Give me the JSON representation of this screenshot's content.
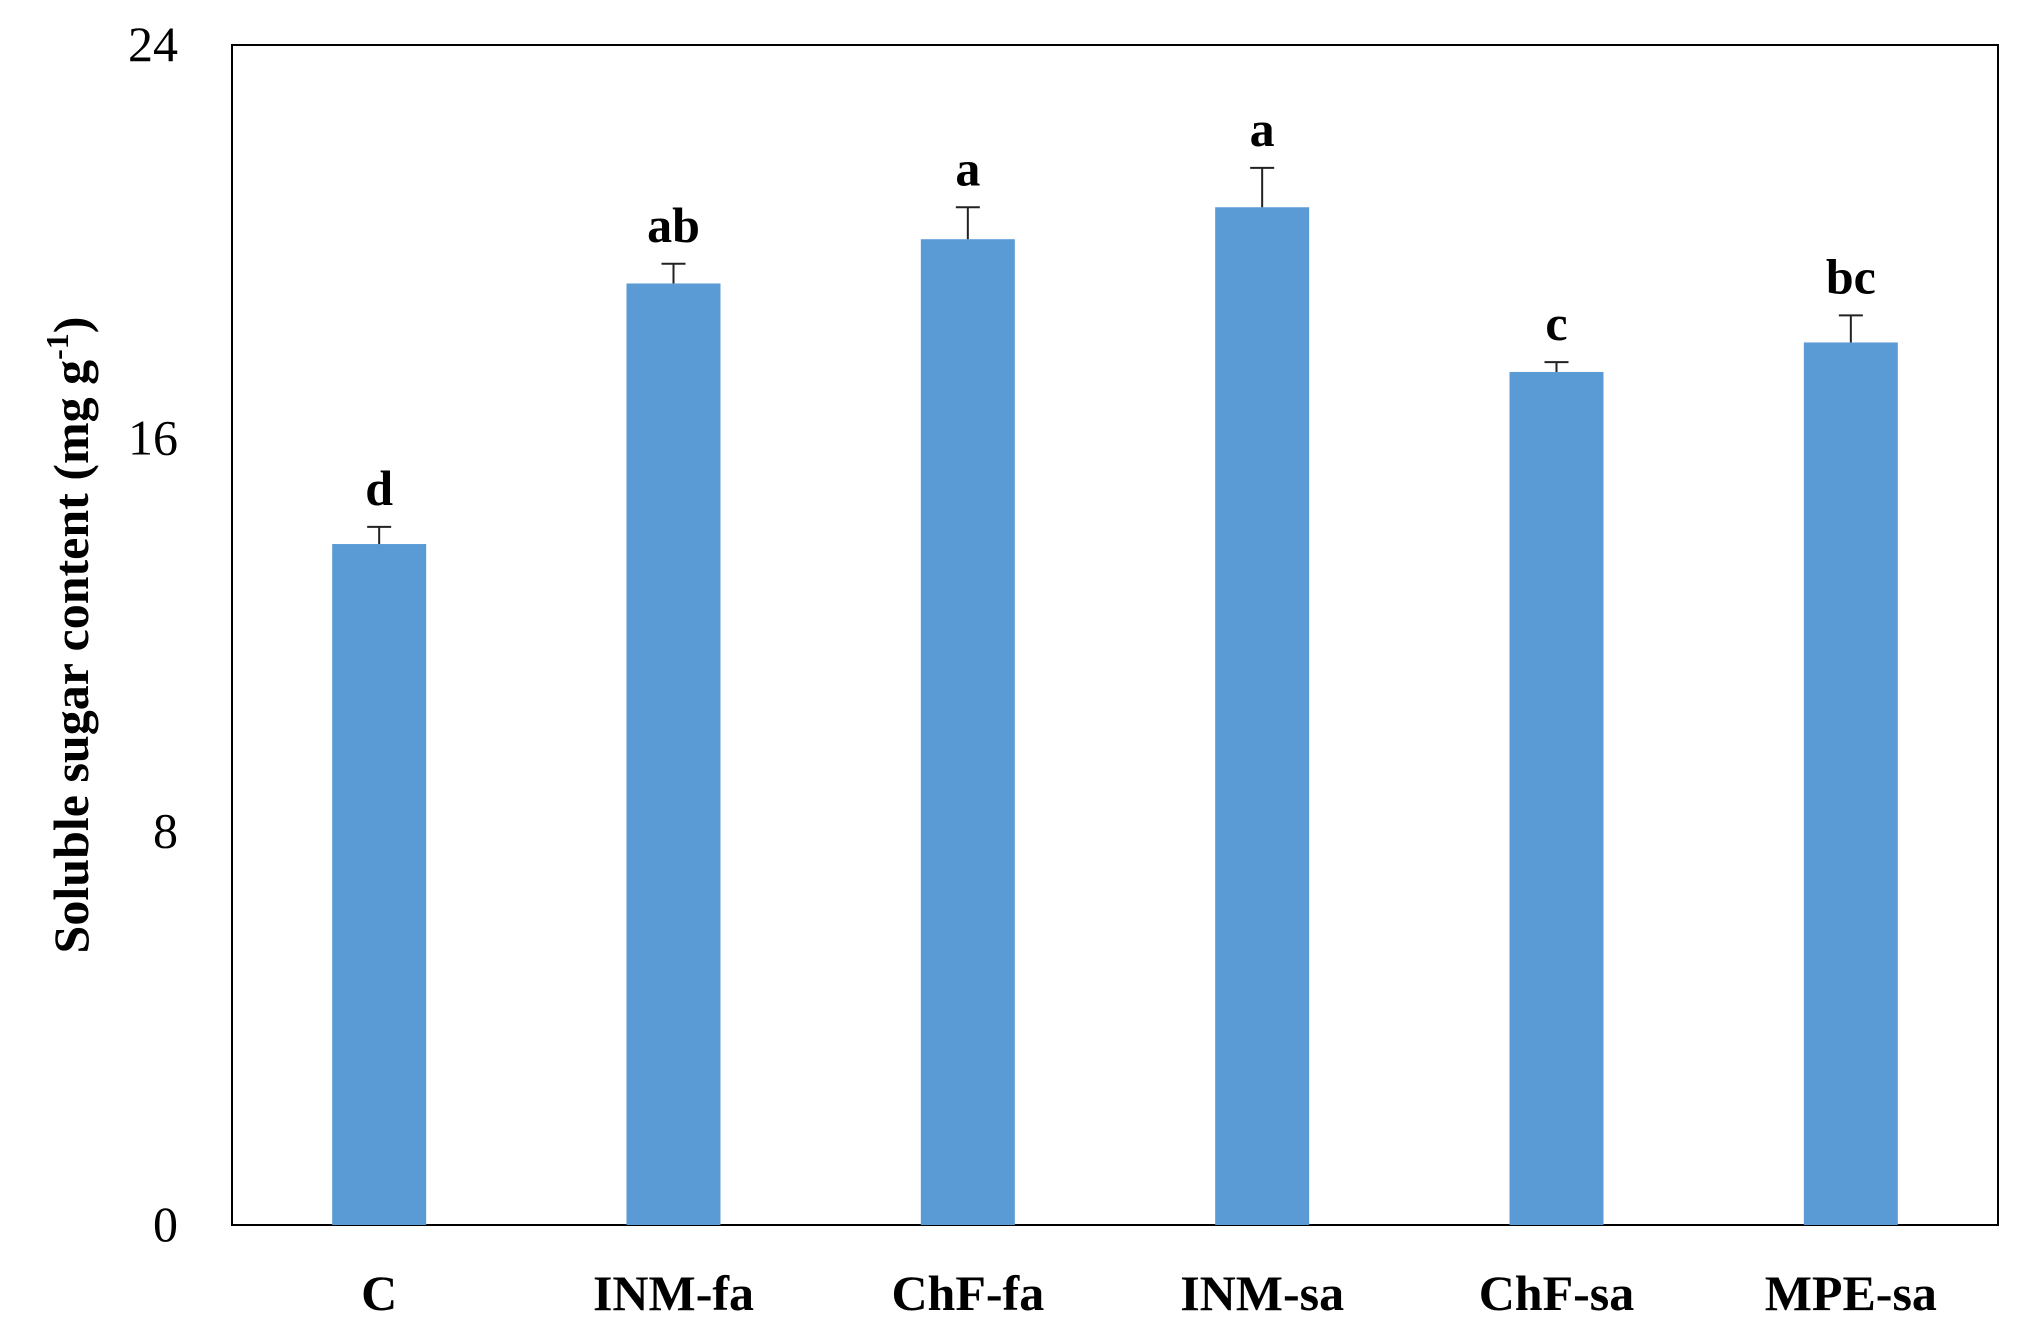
{
  "chart_data": {
    "type": "bar",
    "title": "",
    "xlabel": "",
    "ylabel": "Soluble sugar content (mg g",
    "ylabel_sup": "-1",
    "ylabel_close": ")",
    "ylim": [
      0,
      24
    ],
    "yticks": [
      0,
      8,
      16,
      24
    ],
    "grid": false,
    "categories": [
      "C",
      "INM-fa",
      "ChF-fa",
      "INM-sa",
      "ChF-sa",
      "MPE-sa"
    ],
    "values": [
      13.85,
      19.15,
      20.05,
      20.7,
      17.35,
      17.95
    ],
    "errors": [
      0.35,
      0.4,
      0.65,
      0.8,
      0.2,
      0.55
    ],
    "significance_letters": [
      "d",
      "ab",
      "a",
      "a",
      "c",
      "bc"
    ],
    "bar_color": "#5b9bd5"
  }
}
